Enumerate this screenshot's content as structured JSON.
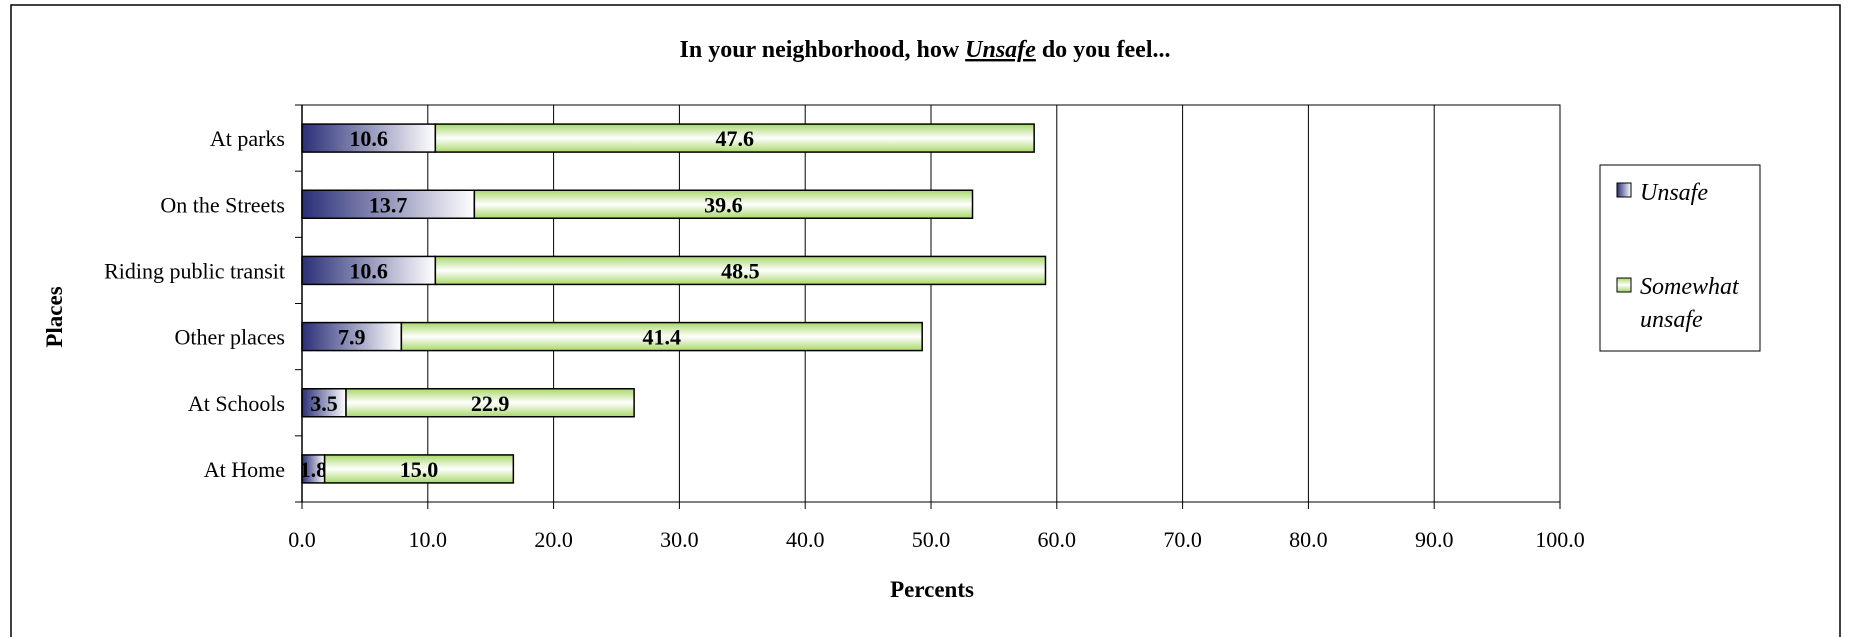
{
  "chart_data": {
    "type": "bar",
    "orientation": "horizontal",
    "stacked": true,
    "title": {
      "prefix": "In your neighborhood, how ",
      "emphasis": "Unsafe",
      "suffix": "  do you feel..."
    },
    "xlabel": "Percents",
    "ylabel": "Places",
    "xlim": [
      0,
      100
    ],
    "xticks": [
      "0.0",
      "10.0",
      "20.0",
      "30.0",
      "40.0",
      "50.0",
      "60.0",
      "70.0",
      "80.0",
      "90.0",
      "100.0"
    ],
    "categories": [
      "At parks",
      "On the Streets",
      "Riding public transit",
      "Other places",
      "At Schools",
      "At Home"
    ],
    "series": [
      {
        "name": "Unsafe",
        "values": [
          10.6,
          13.7,
          10.6,
          7.9,
          3.5,
          1.8
        ],
        "labels": [
          "10.6",
          "13.7",
          "10.6",
          "7.9",
          "3.5",
          "1.8"
        ],
        "color": "#2a2f78"
      },
      {
        "name": "Somewhat unsafe",
        "values": [
          47.6,
          39.6,
          48.5,
          41.4,
          22.9,
          15.0
        ],
        "labels": [
          "47.6",
          "39.6",
          "48.5",
          "41.4",
          "22.9",
          "15.0"
        ],
        "color": "#8cc63f"
      }
    ],
    "legend": {
      "position": "right",
      "lines": [
        [
          "Unsafe"
        ],
        [
          "Somewhat",
          "unsafe"
        ]
      ]
    },
    "grid": {
      "vertical": true
    }
  }
}
